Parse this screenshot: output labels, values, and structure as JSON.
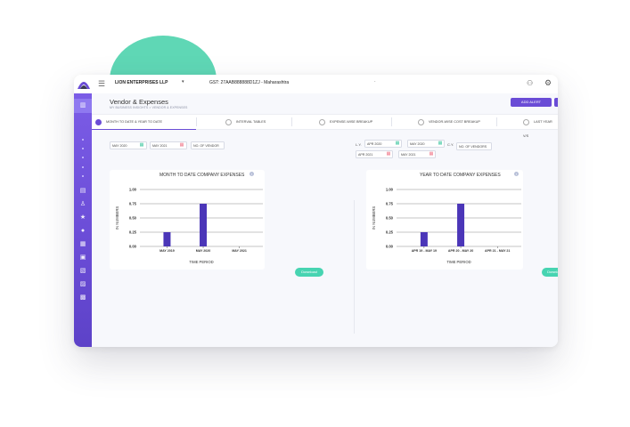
{
  "topbar": {
    "company": "LION ENTERPRISES LLP",
    "gst": "GST: 27AAB888888D1ZJ - Maharashtra"
  },
  "page": {
    "title": "Vendor & Expenses",
    "breadcrumb": "MY BUSINESS INSIGHTS > VENDOR & EXPENSES",
    "add_alert": "ADD ALERT"
  },
  "tabs": [
    {
      "label": "MONTH TO DATE & YEAR TO DATE",
      "active": true
    },
    {
      "label": "INTERVAL TABLES",
      "active": false
    },
    {
      "label": "EXPENSE-WISE BREAKUP",
      "active": false
    },
    {
      "label": "VENDOR-WISE COST BREAKUP",
      "active": false
    },
    {
      "label": "LAST YEAR V/S",
      "active": false
    }
  ],
  "mtd_filters": {
    "from": "MAY 2020",
    "to": "MAY 2021",
    "metric": "NO. OF VENDOR"
  },
  "ytd_filters": {
    "ly_label": "L.Y.",
    "cy_label": "C.Y.",
    "ly_from": "APR 2020",
    "cy_from": "APR 2021",
    "ly_to": "MAY 2020",
    "cy_to": "MAY 2021",
    "metric": "NO. OF VENDORS"
  },
  "download_label": "Download",
  "colors": {
    "accent": "#6a4cd6",
    "bar": "#4b36b8",
    "download": "#47d4b1"
  },
  "chart_data": [
    {
      "type": "bar",
      "title": "MONTH TO DATE COMPANY EXPENSES",
      "xlabel": "TIME PERIOD",
      "ylabel": "IN NUMBERS",
      "categories": [
        "MAY 2019",
        "MAY 2020",
        "MAY 2021"
      ],
      "values": [
        0.25,
        0.75,
        0
      ],
      "yticks": [
        "0.00",
        "0.25",
        "0.50",
        "0.75",
        "1.00"
      ],
      "ylim": [
        0,
        1
      ],
      "grid": true
    },
    {
      "type": "bar",
      "title": "YEAR TO DATE COMPANY EXPENSES",
      "xlabel": "TIME PERIOD",
      "ylabel": "IN NUMBERS",
      "categories": [
        "APR 19 - MAY 19",
        "APR 20 - MAY 20",
        "APR 21 - MAY 21"
      ],
      "values": [
        0.25,
        0.75,
        0
      ],
      "yticks": [
        "0.00",
        "0.25",
        "0.50",
        "0.75",
        "1.00"
      ],
      "ylim": [
        0,
        1
      ],
      "grid": true
    }
  ]
}
